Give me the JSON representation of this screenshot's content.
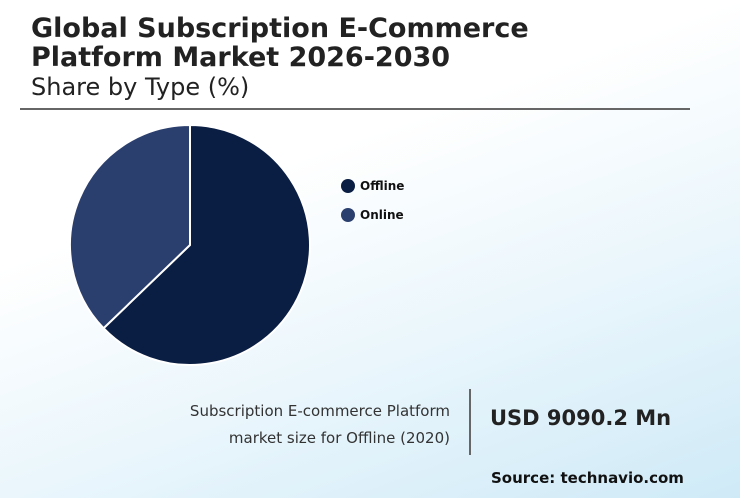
{
  "header": {
    "title_line1": "Global Subscription E-Commerce",
    "title_line2": "Platform Market 2026-2030",
    "subtitle": "Share by Type (%)"
  },
  "chart_data": {
    "type": "pie",
    "categories": [
      "Offline",
      "Online"
    ],
    "values": [
      62.8,
      37.2
    ],
    "colors": [
      "#0a1d42",
      "#2b3f6e"
    ],
    "start_angle": "12 o'clock, clockwise",
    "legend_position": "right"
  },
  "highlight": {
    "description_line1": "Subscription E-commerce Platform",
    "description_line2": "market size for Offline (2020)",
    "value": "USD 9090.2 Mn"
  },
  "source": "Source: technavio.com"
}
